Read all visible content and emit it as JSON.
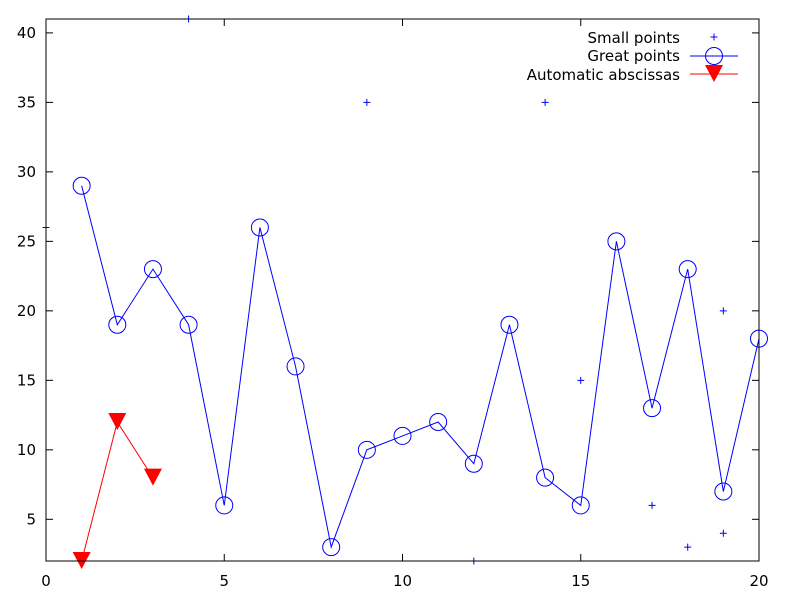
{
  "chart_data": {
    "type": "line",
    "title": "",
    "xlabel": "",
    "ylabel": "",
    "xlim": [
      0,
      20
    ],
    "ylim": [
      2,
      41
    ],
    "xticks": [
      0,
      5,
      10,
      15,
      20
    ],
    "yticks": [
      5,
      10,
      15,
      20,
      25,
      30,
      35,
      40
    ],
    "grid": false,
    "legend_position": "top-right (inside)",
    "series": [
      {
        "name": "Small points",
        "style": "points",
        "marker": "plus",
        "color": "#0000ff",
        "points": [
          [
            0,
            26
          ],
          [
            4,
            41
          ],
          [
            9,
            35
          ],
          [
            12,
            2
          ],
          [
            14,
            35
          ],
          [
            15,
            15
          ],
          [
            17,
            6
          ],
          [
            18,
            3
          ],
          [
            19,
            20
          ],
          [
            19,
            4
          ]
        ]
      },
      {
        "name": "Great points",
        "style": "linespoints",
        "marker": "open-circle",
        "color": "#0000ff",
        "x": [
          1,
          2,
          3,
          4,
          5,
          6,
          7,
          8,
          9,
          10,
          11,
          12,
          13,
          14,
          15,
          16,
          17,
          18,
          19,
          20
        ],
        "values": [
          29,
          19,
          23,
          19,
          6,
          26,
          16,
          3,
          10,
          11,
          12,
          9,
          19,
          8,
          6,
          25,
          13,
          23,
          7,
          18
        ]
      },
      {
        "name": "Automatic abscissas",
        "style": "linespoints",
        "marker": "filled-down-triangle",
        "color": "#ff0000",
        "x": [
          1,
          2,
          3
        ],
        "values": [
          2,
          12,
          8
        ]
      }
    ]
  },
  "legend": {
    "items": [
      {
        "label": "Small points"
      },
      {
        "label": "Great points"
      },
      {
        "label": "Automatic abscissas"
      }
    ]
  }
}
